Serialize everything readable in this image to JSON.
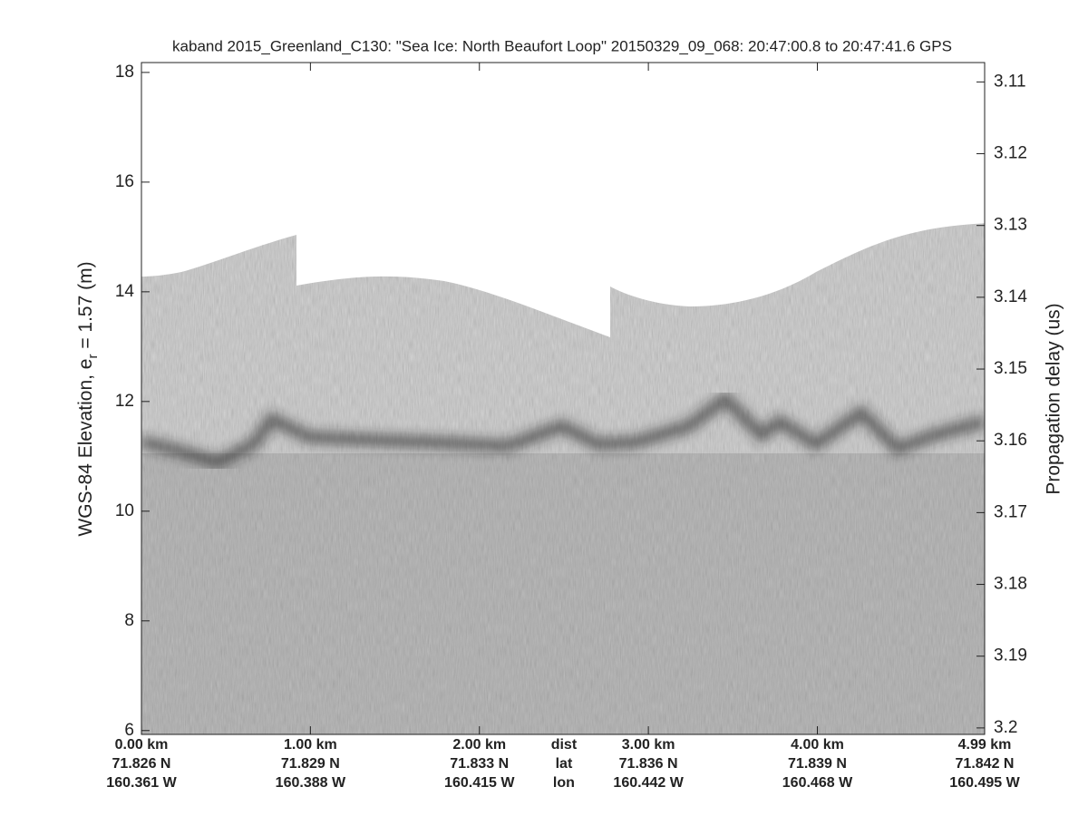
{
  "chart_data": {
    "type": "echogram",
    "title": "kaband 2015_Greenland_C130: \"Sea Ice: North Beaufort Loop\"  20150329_09_068: 20:47:00.8 to 20:47:41.6 GPS",
    "ylabel": {
      "text": "WGS-84 Elevation, e",
      "subscript": "r",
      "suffix": " = 1.57 (m)"
    },
    "y2label": "Propagation delay (us)",
    "xlim": [
      0,
      4.99
    ],
    "xticks": [
      {
        "value": 0,
        "label": "0.00 km"
      },
      {
        "value": 1,
        "label": "1.00 km"
      },
      {
        "value": 2,
        "label": "2.00 km"
      },
      {
        "value": 3,
        "label": "3.00 km"
      },
      {
        "value": 4,
        "label": "4.00 km"
      },
      {
        "value": 4.99,
        "label": "4.99 km"
      }
    ],
    "lat_labels": [
      "71.826 N",
      "71.829 N",
      "71.833 N",
      "71.836 N",
      "71.839 N",
      "71.842 N"
    ],
    "lon_labels": [
      "160.361 W",
      "160.388 W",
      "160.415 W",
      "160.442 W",
      "160.468 W",
      "160.495 W"
    ],
    "row_labels": {
      "value": 2.5,
      "labels": [
        "dist",
        "lat",
        "lon"
      ]
    },
    "ylim": [
      5.93,
      18.18
    ],
    "yticks": [
      6,
      8,
      10,
      12,
      14,
      16,
      18
    ],
    "y2lim": [
      3.2009,
      3.1073
    ],
    "y2ticks": [
      3.11,
      3.12,
      3.13,
      3.14,
      3.15,
      3.16,
      3.17,
      3.18,
      3.19,
      3.2
    ]
  }
}
